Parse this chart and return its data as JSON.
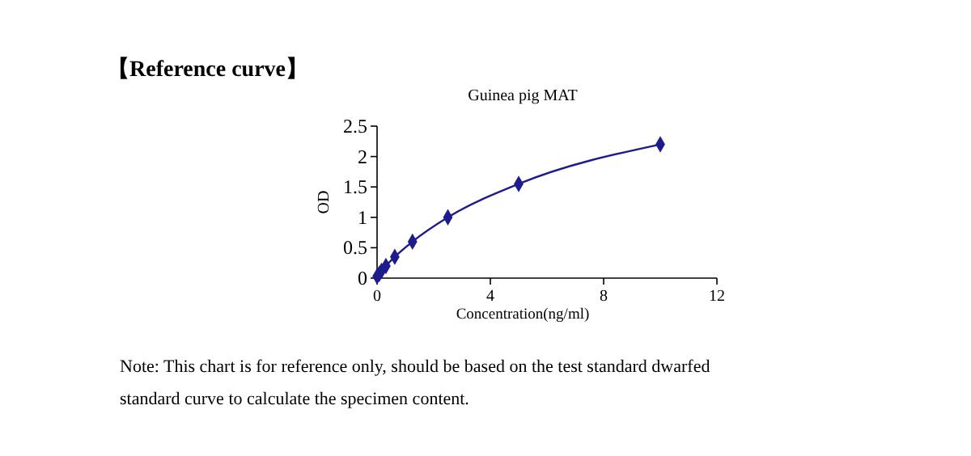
{
  "chart_data": {
    "type": "line",
    "title": "【Reference curve】",
    "subtitle": "Guinea pig MAT",
    "xlabel": "Concentration(ng/ml)",
    "ylabel": "OD",
    "x": [
      0,
      0.078,
      0.156,
      0.312,
      0.625,
      1.25,
      2.5,
      5,
      10
    ],
    "series": [
      {
        "color": "#1c1c8e",
        "values": [
          0.03,
          0.07,
          0.12,
          0.2,
          0.35,
          0.6,
          1.0,
          1.55,
          2.2
        ]
      }
    ],
    "xlim": [
      0,
      12
    ],
    "xticks": [
      0,
      4,
      8,
      12
    ],
    "ylim": [
      0,
      2.5
    ],
    "yticks": [
      0,
      0.5,
      1,
      1.5,
      2,
      2.5
    ],
    "marker": "diamond",
    "line_style": "solid",
    "annotations": [
      "Note: This chart is for reference only, should be based on the test standard dwarfed standard curve to calculate the specimen content."
    ]
  }
}
